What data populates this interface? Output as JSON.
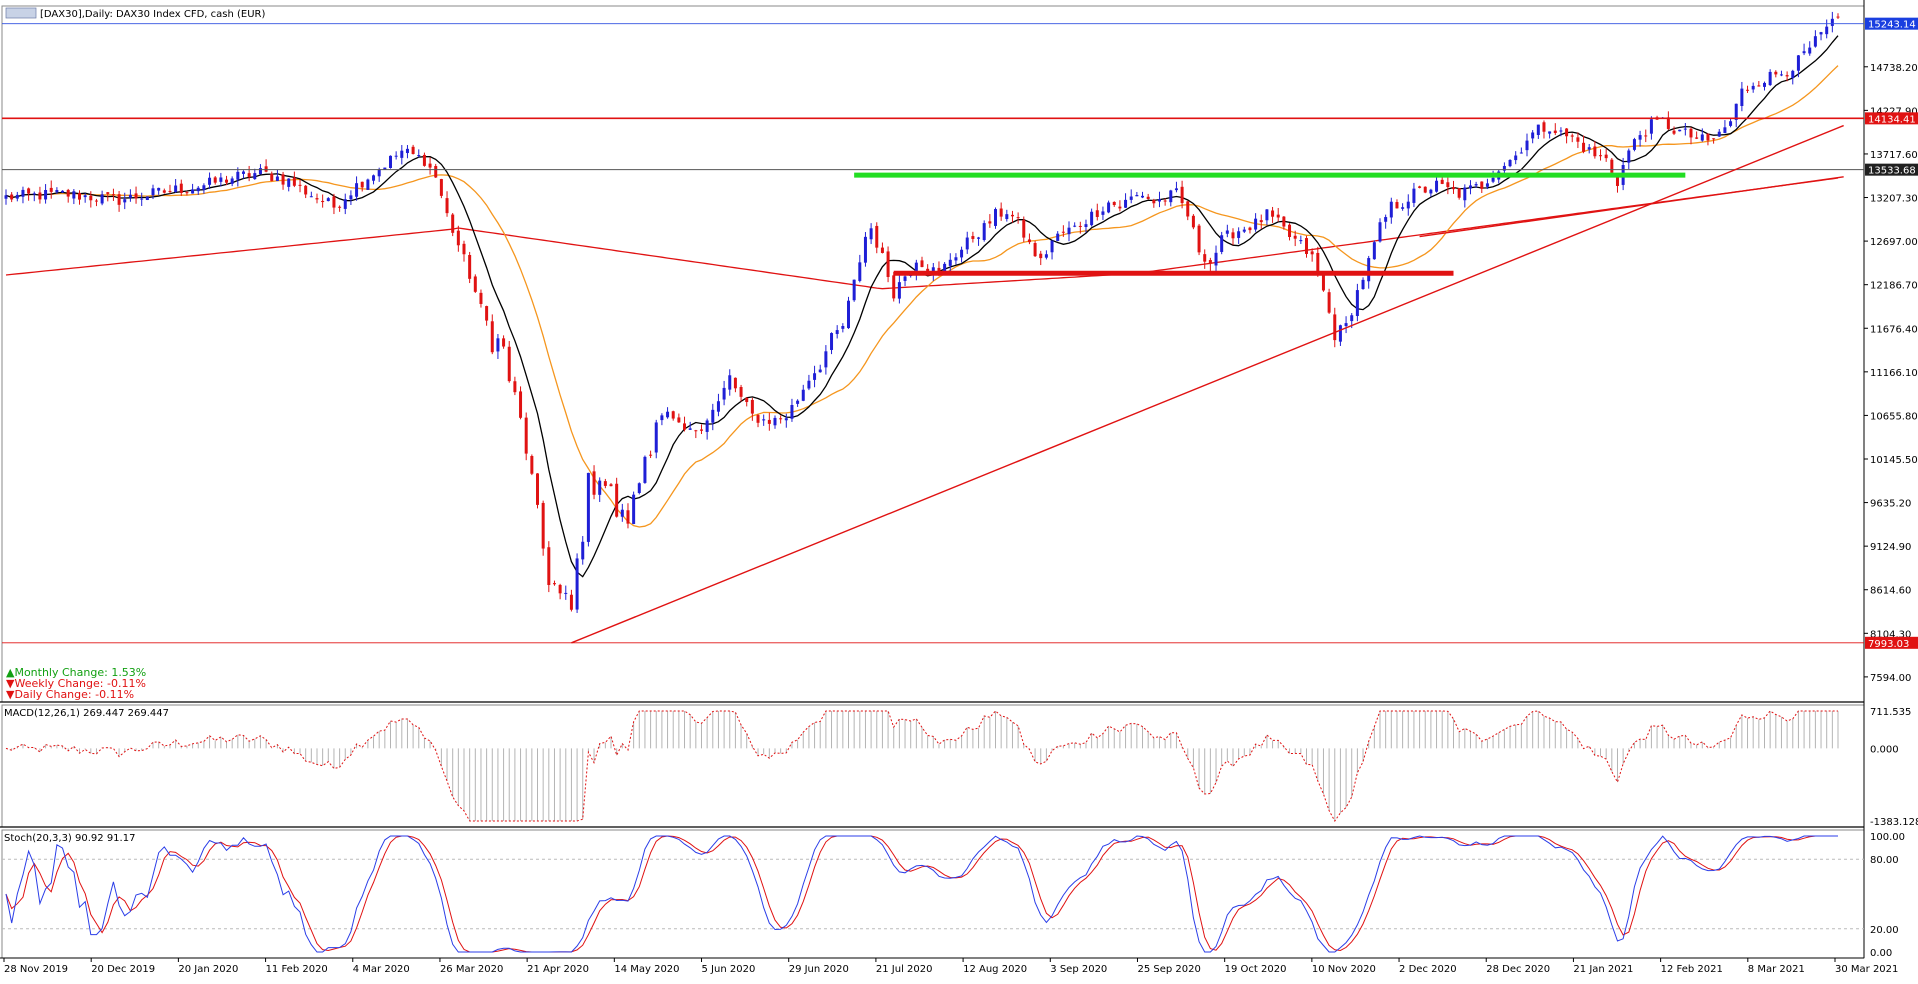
{
  "window": {
    "title": "[DAX30],Daily:  DAX30 Index CFD, cash (EUR)",
    "icon": "chart-window-icon"
  },
  "colors": {
    "bull_candle": "#1f1fd6",
    "bear_candle": "#e01212",
    "ma_fast": "#000000",
    "ma_mid": "#f5961e",
    "ma_slow": "#e01212",
    "support_line": "#e01212",
    "resistance_green": "#22dd22",
    "trendline": "#e01212",
    "macd_hist": "#b4b4b4",
    "macd_signal": "#e01212",
    "stoch_main": "#2b3ee8",
    "stoch_signal": "#e01212",
    "grid_line": "#000000",
    "price_box_blue": "#1a3fe0",
    "price_box_red": "#e01212",
    "price_box_dark": "#202020",
    "change_up": "#12a012",
    "change_down": "#e01212"
  },
  "stats": {
    "monthly_label": "▲Monthly Change: 1.53%",
    "weekly_label": "▼Weekly Change: -0.11%",
    "daily_label": "▼Daily Change: -0.11%"
  },
  "price_axis": {
    "ticks": [
      "14738.20",
      "14227.90",
      "13717.60",
      "13207.30",
      "12697.00",
      "12186.70",
      "11676.40",
      "11166.10",
      "10655.80",
      "10145.50",
      "9635.20",
      "9124.90",
      "8614.60",
      "8104.30",
      "7594.00"
    ],
    "ylim": [
      7300,
      15450
    ]
  },
  "price_labels": {
    "current": "15243.14",
    "resistance": "14134.41",
    "level_mid": "13533.68",
    "low": "7993.03"
  },
  "date_axis": {
    "labels": [
      "28 Nov 2019",
      "20 Dec 2019",
      "20 Jan 2020",
      "11 Feb 2020",
      "4 Mar 2020",
      "26 Mar 2020",
      "21 Apr 2020",
      "14 May 2020",
      "5 Jun 2020",
      "29 Jun 2020",
      "21 Jul 2020",
      "12 Aug 2020",
      "3 Sep 2020",
      "25 Sep 2020",
      "19 Oct 2020",
      "10 Nov 2020",
      "2 Dec 2020",
      "28 Dec 2020",
      "21 Jan 2021",
      "12 Feb 2021",
      "8 Mar 2021",
      "30 Mar 2021"
    ]
  },
  "macd": {
    "label": "MACD(12,26,1) 269.447 269.447",
    "ticks": [
      "711.535",
      "0.000",
      "-1383.128"
    ]
  },
  "stoch": {
    "label": "Stoch(20,3,3) 90.92 91.17",
    "ticks": [
      "100.00",
      "80.00",
      "20.00",
      "0.00"
    ]
  },
  "chart_data": {
    "type": "candlestick",
    "title": "[DAX30],Daily:  DAX30 Index CFD, cash (EUR)",
    "ylim": [
      7300,
      15450
    ],
    "horizontal_levels": [
      15243.14,
      14134.41,
      13533.68,
      7993.03
    ],
    "price_anchors": [
      [
        0,
        13210
      ],
      [
        10,
        13250
      ],
      [
        20,
        13180
      ],
      [
        30,
        13300
      ],
      [
        35,
        13350
      ],
      [
        40,
        13440
      ],
      [
        45,
        13500
      ],
      [
        50,
        13400
      ],
      [
        55,
        13200
      ],
      [
        58,
        13100
      ],
      [
        62,
        13350
      ],
      [
        67,
        13600
      ],
      [
        70,
        13750
      ],
      [
        74,
        13650
      ],
      [
        76,
        13450
      ],
      [
        78,
        13000
      ],
      [
        80,
        12650
      ],
      [
        82,
        12300
      ],
      [
        84,
        11900
      ],
      [
        86,
        11600
      ],
      [
        88,
        11400
      ],
      [
        90,
        10800
      ],
      [
        92,
        10300
      ],
      [
        94,
        9400
      ],
      [
        96,
        8800
      ],
      [
        98,
        8500
      ],
      [
        100,
        8350
      ],
      [
        101,
        8900
      ],
      [
        103,
        9800
      ],
      [
        105,
        10000
      ],
      [
        107,
        9700
      ],
      [
        109,
        9400
      ],
      [
        111,
        9600
      ],
      [
        113,
        10200
      ],
      [
        115,
        10600
      ],
      [
        117,
        10650
      ],
      [
        119,
        10500
      ],
      [
        121,
        10450
      ],
      [
        123,
        10550
      ],
      [
        126,
        10800
      ],
      [
        128,
        11100
      ],
      [
        130,
        10850
      ],
      [
        132,
        10650
      ],
      [
        134,
        10600
      ],
      [
        136,
        10600
      ],
      [
        138,
        10650
      ],
      [
        140,
        10850
      ],
      [
        142,
        11100
      ],
      [
        144,
        11250
      ],
      [
        146,
        11550
      ],
      [
        148,
        11700
      ],
      [
        150,
        12200
      ],
      [
        152,
        12750
      ],
      [
        153,
        12850
      ],
      [
        155,
        12500
      ],
      [
        157,
        12100
      ],
      [
        159,
        12300
      ],
      [
        161,
        12500
      ],
      [
        163,
        12400
      ],
      [
        165,
        12300
      ],
      [
        167,
        12500
      ],
      [
        169,
        12600
      ],
      [
        171,
        12750
      ],
      [
        173,
        12850
      ],
      [
        175,
        13000
      ],
      [
        177,
        13050
      ],
      [
        179,
        12900
      ],
      [
        181,
        12650
      ],
      [
        183,
        12450
      ],
      [
        185,
        12700
      ],
      [
        187,
        12800
      ],
      [
        189,
        12850
      ],
      [
        191,
        12950
      ],
      [
        193,
        13050
      ],
      [
        195,
        13150
      ],
      [
        197,
        13100
      ],
      [
        199,
        13200
      ],
      [
        201,
        13250
      ],
      [
        203,
        13150
      ],
      [
        205,
        13200
      ],
      [
        207,
        13250
      ],
      [
        209,
        13000
      ],
      [
        211,
        12600
      ],
      [
        213,
        12450
      ],
      [
        215,
        12700
      ],
      [
        217,
        12800
      ],
      [
        219,
        12850
      ],
      [
        221,
        12900
      ],
      [
        223,
        13000
      ],
      [
        225,
        12900
      ],
      [
        227,
        12750
      ],
      [
        229,
        12650
      ],
      [
        231,
        12500
      ],
      [
        233,
        12100
      ],
      [
        235,
        11600
      ],
      [
        237,
        11700
      ],
      [
        239,
        12100
      ],
      [
        241,
        12450
      ],
      [
        243,
        12850
      ],
      [
        245,
        13100
      ],
      [
        247,
        13150
      ],
      [
        249,
        13250
      ],
      [
        251,
        13300
      ],
      [
        253,
        13350
      ],
      [
        255,
        13300
      ],
      [
        257,
        13250
      ],
      [
        259,
        13300
      ],
      [
        261,
        13350
      ],
      [
        263,
        13500
      ],
      [
        265,
        13600
      ],
      [
        267,
        13700
      ],
      [
        269,
        13900
      ],
      [
        271,
        14000
      ],
      [
        273,
        14050
      ],
      [
        275,
        13950
      ],
      [
        277,
        13900
      ],
      [
        279,
        13800
      ],
      [
        281,
        13700
      ],
      [
        283,
        13650
      ],
      [
        285,
        13400
      ],
      [
        287,
        13750
      ],
      [
        289,
        13950
      ],
      [
        291,
        14050
      ],
      [
        293,
        14100
      ],
      [
        295,
        14000
      ],
      [
        297,
        13950
      ],
      [
        299,
        13900
      ],
      [
        301,
        13850
      ],
      [
        303,
        13950
      ],
      [
        305,
        14100
      ],
      [
        307,
        14450
      ],
      [
        309,
        14550
      ],
      [
        311,
        14600
      ],
      [
        313,
        14650
      ],
      [
        315,
        14700
      ],
      [
        317,
        14800
      ],
      [
        319,
        14950
      ],
      [
        321,
        15100
      ],
      [
        323,
        15250
      ],
      [
        324,
        15243
      ]
    ],
    "candle_count": 325,
    "moving_averages": [
      "fast",
      "mid",
      "slow"
    ],
    "trendlines": [
      {
        "from": [
          100,
          7993
        ],
        "to": [
          325,
          14050
        ],
        "color": "red"
      },
      {
        "from": [
          250,
          12750
        ],
        "to": [
          325,
          13450
        ],
        "color": "red"
      }
    ],
    "zones": [
      {
        "type": "resistance",
        "color": "green",
        "x_range": [
          150,
          297
        ],
        "price": 13470
      },
      {
        "type": "support",
        "color": "red",
        "x_range": [
          157,
          256
        ],
        "price": 12320
      }
    ]
  }
}
